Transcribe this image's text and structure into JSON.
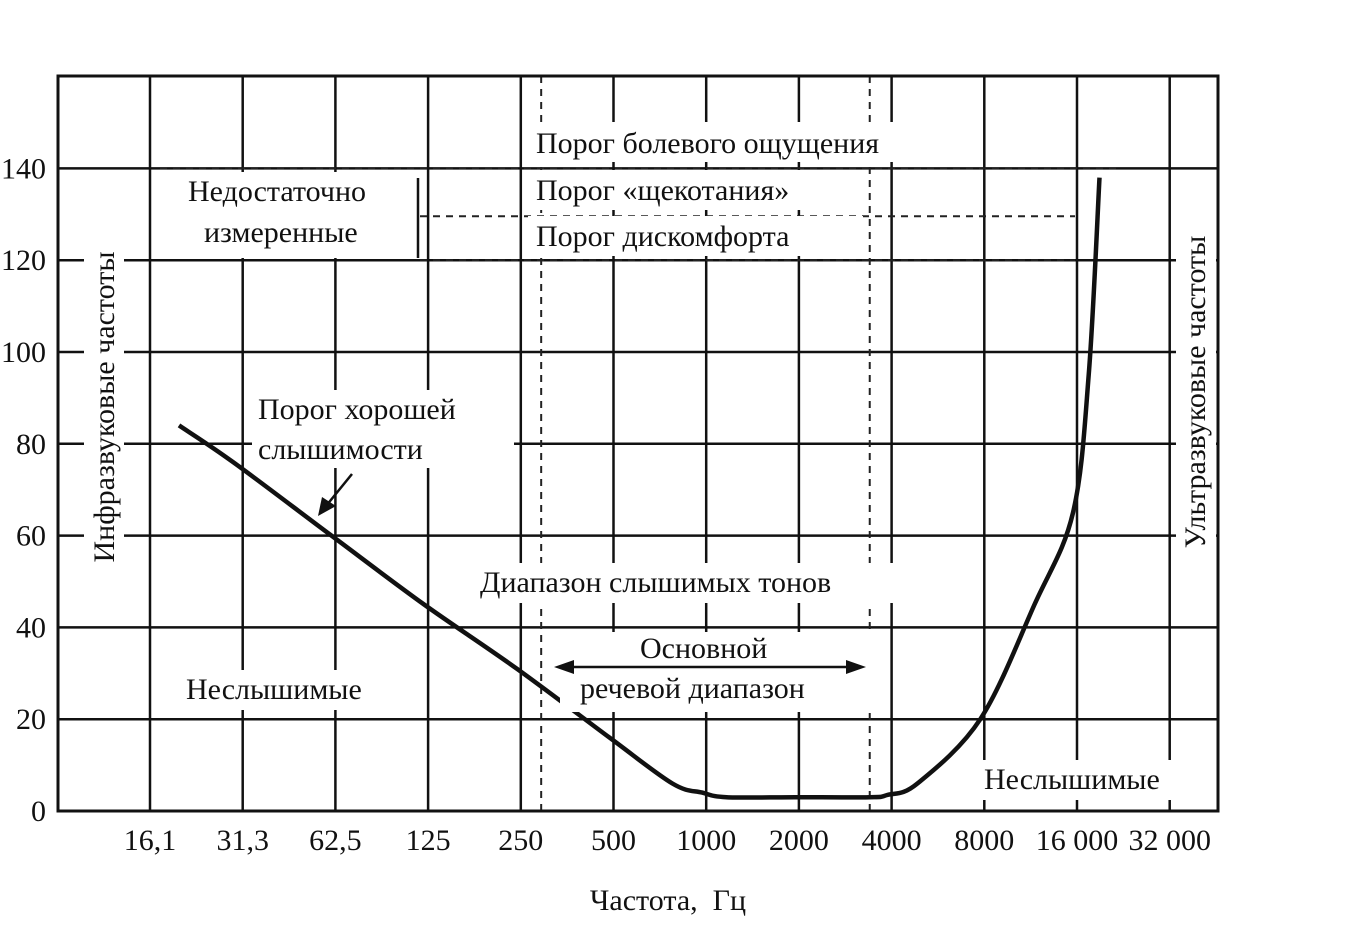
{
  "chart_data": {
    "type": "line",
    "xlabel": "Частота,  Гц",
    "x_tick_labels": [
      "16,1",
      "31,3",
      "62,5",
      "125",
      "250",
      "500",
      "1000",
      "2000",
      "4000",
      "8000",
      "16 000",
      "32 000"
    ],
    "ylim": [
      0,
      140
    ],
    "y_ticks": [
      0,
      20,
      40,
      60,
      80,
      100,
      120,
      140
    ],
    "y_tick_labels": [
      "0",
      "20",
      "40",
      "60",
      "80",
      "100",
      "120",
      "140"
    ],
    "grid": true,
    "thresholds": [
      {
        "label": "Порог болевого ощущения",
        "y": 140
      },
      {
        "label": "Порог «щекотания»",
        "y": 130
      },
      {
        "label": "Порог дискомфорта",
        "y": 120
      }
    ],
    "series": [
      {
        "name": "",
        "x": [
          20,
          30,
          62.5,
          125,
          250,
          500,
          800,
          1000,
          1200,
          2000,
          3500,
          4000,
          5000,
          8000,
          12000,
          16000,
          18000,
          19500
        ],
        "y": [
          84,
          76,
          60,
          45,
          31,
          16,
          6,
          4,
          3,
          3,
          3,
          3.5,
          6,
          20,
          45,
          65,
          95,
          138
        ]
      }
    ],
    "annotations": {
      "left_side": "Инфразвуковые частоты",
      "right_side": "Ультразвуковые частоты",
      "insufficient_line1": "Недостаточно",
      "insufficient_line2": "измеренные",
      "good_hearing_line1": "Порог хорошей",
      "good_hearing_line2": "слышимости",
      "audible_range": "Диапазон слышимых тонов",
      "speech_line1": "Основной",
      "speech_line2": "речевой диапазон",
      "inaudible_left": "Неслышимые",
      "inaudible_right": "Неслышимые"
    },
    "speech_range": [
      300,
      3500
    ]
  }
}
